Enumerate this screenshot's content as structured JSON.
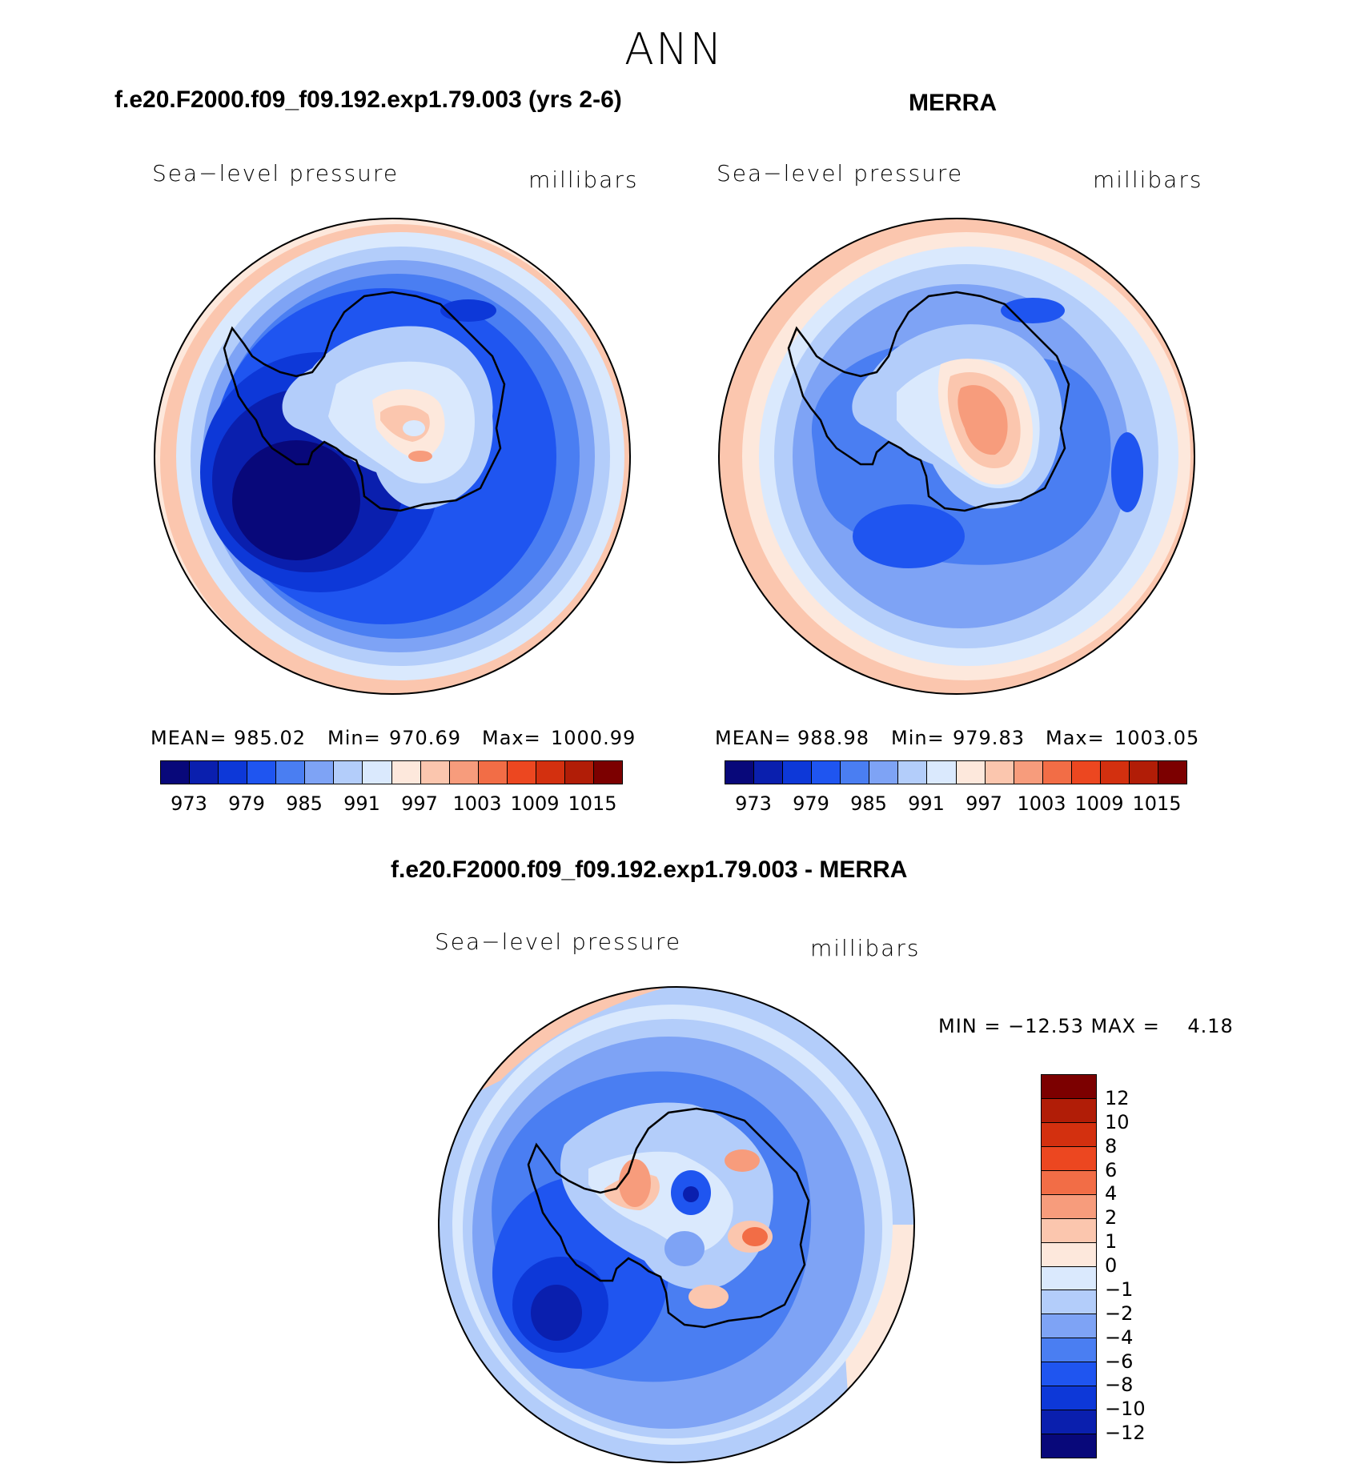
{
  "season": "ANN",
  "panels": [
    {
      "case_title": "f.e20.F2000.f09_f09.192.exp1.79.003 (yrs 2-6)",
      "left_label": "Sea−level pressure",
      "right_label": "millibars",
      "stats": {
        "mean_label": "MEAN=",
        "mean": "985.02",
        "min_label": "Min=",
        "min": "970.69",
        "max_label": "Max=",
        "max": "1000.99"
      },
      "colorbar_ticks": [
        "973",
        "979",
        "985",
        "991",
        "997",
        "1003",
        "1009",
        "1015"
      ]
    },
    {
      "case_title": "MERRA",
      "left_label": "Sea−level pressure",
      "right_label": "millibars",
      "stats": {
        "mean_label": "MEAN=",
        "mean": "988.98",
        "min_label": "Min=",
        "min": "979.83",
        "max_label": "Max=",
        "max": "1003.05"
      },
      "colorbar_ticks": [
        "973",
        "979",
        "985",
        "991",
        "997",
        "1003",
        "1009",
        "1015"
      ]
    },
    {
      "case_title": "f.e20.F2000.f09_f09.192.exp1.79.003 - MERRA",
      "left_label": "Sea−level pressure",
      "right_label": "millibars",
      "stats_text": "MIN = −12.53 MAX =    4.18",
      "colorbar_ticks": [
        "12",
        "10",
        "8",
        "6",
        "4",
        "2",
        "1",
        "0",
        "−1",
        "−2",
        "−4",
        "−6",
        "−8",
        "−10",
        "−12"
      ]
    }
  ],
  "colors": {
    "abs_scale": [
      "#08087a",
      "#0a1fae",
      "#0d38d8",
      "#1f55f0",
      "#4a7ef2",
      "#7ea3f5",
      "#b3cdfa",
      "#dae9fd",
      "#fde8dc",
      "#fbc6ae",
      "#f79c7c",
      "#f26d46",
      "#ec4720",
      "#d3300f",
      "#b11d07",
      "#7c0000"
    ],
    "diff_scale": [
      "#7c0000",
      "#b11d07",
      "#d3300f",
      "#ec4720",
      "#f26d46",
      "#f79c7c",
      "#fbc6ae",
      "#fde8dc",
      "#dae9fd",
      "#b3cdfa",
      "#7ea3f5",
      "#4a7ef2",
      "#1f55f0",
      "#0d38d8",
      "#0a1fae",
      "#08087a"
    ]
  }
}
